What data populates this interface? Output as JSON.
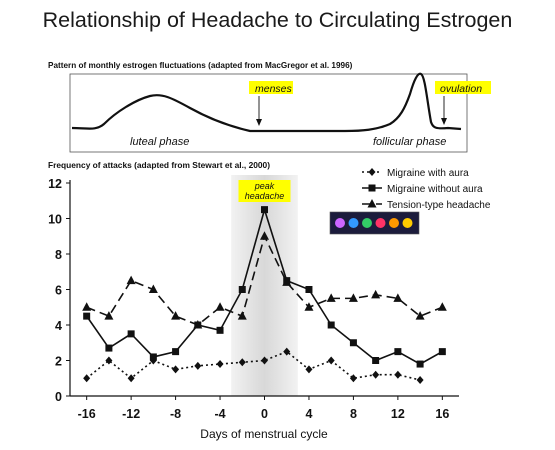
{
  "title": "Relationship of Headache to Circulating Estrogen",
  "top_panel": {
    "caption": "Pattern of monthly estrogen fluctuations (adapted from MacGregor et al. 1996)",
    "phase_luteal": "luteal phase",
    "phase_follicular": "follicular phase",
    "marker_menses": "menses",
    "marker_ovulation": "ovulation",
    "highlight_color": "#ffff00"
  },
  "chart_data": {
    "type": "line",
    "title": "Frequency of attacks (adapted from Stewart et al., 2000)",
    "xlabel": "Days of menstrual cycle",
    "ylabel": "",
    "xlim": [
      -17.5,
      17.5
    ],
    "ylim": [
      0,
      12
    ],
    "x_ticks": [
      -16,
      -12,
      -8,
      -4,
      0,
      4,
      8,
      12,
      16
    ],
    "y_ticks": [
      0,
      2,
      4,
      6,
      8,
      10,
      12
    ],
    "grid": false,
    "legend_position": "top-right",
    "annotation": "peak headache",
    "shaded_region": [
      -3,
      3
    ],
    "series": [
      {
        "name": "Migraine with aura",
        "style": "dotted",
        "marker": "diamond",
        "x": [
          -16,
          -14,
          -12,
          -10,
          -8,
          -6,
          -4,
          -2,
          0,
          2,
          4,
          6,
          8,
          10,
          12,
          14
        ],
        "values": [
          1.0,
          2.0,
          1.0,
          2.0,
          1.5,
          1.7,
          1.8,
          1.9,
          2.0,
          2.5,
          1.5,
          2.0,
          1.0,
          1.2,
          1.2,
          0.9
        ]
      },
      {
        "name": "Migraine without aura",
        "style": "solid",
        "marker": "square",
        "x": [
          -16,
          -14,
          -12,
          -10,
          -8,
          -6,
          -4,
          -2,
          0,
          2,
          4,
          6,
          8,
          10,
          12,
          14,
          16
        ],
        "values": [
          4.5,
          2.7,
          3.5,
          2.2,
          2.5,
          4.0,
          3.7,
          6.0,
          10.5,
          6.5,
          6.0,
          4.0,
          3.0,
          2.0,
          2.5,
          1.8,
          2.5
        ]
      },
      {
        "name": "Tension-type headache",
        "style": "dashed",
        "marker": "triangle",
        "x": [
          -16,
          -14,
          -12,
          -10,
          -8,
          -6,
          -4,
          -2,
          0,
          2,
          4,
          6,
          8,
          10,
          12,
          14,
          16
        ],
        "values": [
          5.0,
          4.5,
          6.5,
          6.0,
          4.5,
          4.0,
          5.0,
          4.5,
          9.0,
          6.4,
          5.0,
          5.5,
          5.5,
          5.7,
          5.5,
          4.5,
          5.0
        ]
      }
    ]
  },
  "palette_swatch": {
    "dot_colors": [
      "#cc66ff",
      "#3399ff",
      "#33cc66",
      "#ff3366",
      "#ff9900",
      "#ffcc00"
    ]
  }
}
